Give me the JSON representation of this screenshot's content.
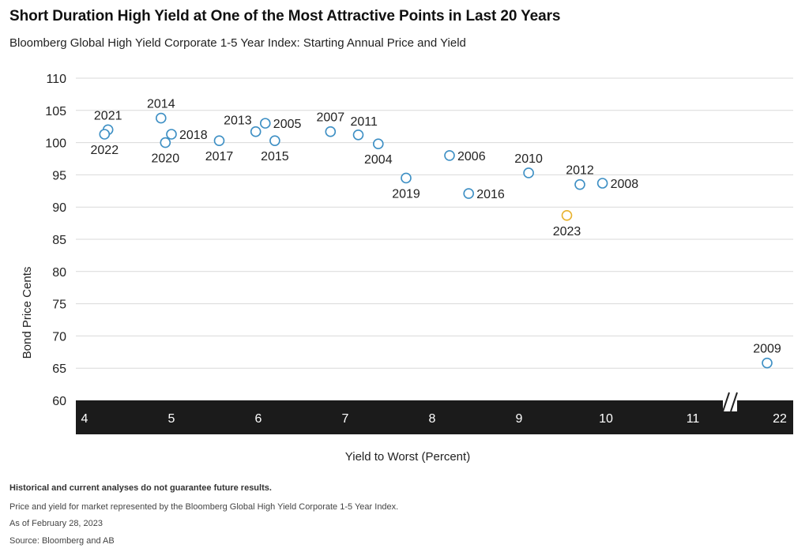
{
  "header": {
    "title": "Short Duration High Yield at One of the Most Attractive Points in Last 20 Years",
    "subtitle": "Bloomberg Global High Yield Corporate 1-5 Year Index: Starting Annual Price and Yield"
  },
  "chart_data": {
    "type": "scatter",
    "xlabel": "Yield to Worst (Percent)",
    "ylabel": "Bond Price Cents",
    "ylim": [
      60,
      110
    ],
    "yticks": [
      "60",
      "65",
      "70",
      "75",
      "80",
      "85",
      "90",
      "95",
      "100",
      "105",
      "110"
    ],
    "xticks": [
      "4",
      "5",
      "6",
      "7",
      "8",
      "9",
      "10",
      "11",
      "22"
    ],
    "xlim": [
      4,
      22
    ],
    "x_axis_break": "between 11 and 22",
    "grid": "horizontal",
    "colors": {
      "default": "#3d8fc4",
      "highlight": "#e8b22e",
      "axis_band": "#1b1b1b"
    },
    "points": [
      {
        "label": "2021",
        "x": 4.27,
        "y": 102.0,
        "label_pos": "above"
      },
      {
        "label": "2022",
        "x": 4.23,
        "y": 101.3,
        "label_pos": "below"
      },
      {
        "label": "2014",
        "x": 4.88,
        "y": 103.8,
        "label_pos": "above"
      },
      {
        "label": "2018",
        "x": 5.0,
        "y": 101.3,
        "label_pos": "right"
      },
      {
        "label": "2020",
        "x": 4.93,
        "y": 100.0,
        "label_pos": "below"
      },
      {
        "label": "2017",
        "x": 5.55,
        "y": 100.3,
        "label_pos": "below"
      },
      {
        "label": "2013",
        "x": 5.97,
        "y": 101.7,
        "label_pos": "above-left"
      },
      {
        "label": "2005",
        "x": 6.08,
        "y": 103.0,
        "label_pos": "right"
      },
      {
        "label": "2015",
        "x": 6.19,
        "y": 100.3,
        "label_pos": "below"
      },
      {
        "label": "2007",
        "x": 6.83,
        "y": 101.7,
        "label_pos": "above"
      },
      {
        "label": "2011",
        "x": 7.15,
        "y": 101.2,
        "label_pos": "above-right"
      },
      {
        "label": "2004",
        "x": 7.38,
        "y": 99.8,
        "label_pos": "below"
      },
      {
        "label": "2019",
        "x": 7.7,
        "y": 94.5,
        "label_pos": "below"
      },
      {
        "label": "2006",
        "x": 8.2,
        "y": 98.0,
        "label_pos": "right"
      },
      {
        "label": "2016",
        "x": 8.42,
        "y": 92.1,
        "label_pos": "right"
      },
      {
        "label": "2010",
        "x": 9.11,
        "y": 95.3,
        "label_pos": "above"
      },
      {
        "label": "2023",
        "x": 9.55,
        "y": 88.7,
        "label_pos": "below",
        "highlight": true
      },
      {
        "label": "2012",
        "x": 9.7,
        "y": 93.5,
        "label_pos": "above"
      },
      {
        "label": "2008",
        "x": 9.96,
        "y": 93.7,
        "label_pos": "right"
      },
      {
        "label": "2009",
        "x": 21.6,
        "y": 65.8,
        "label_pos": "above"
      }
    ]
  },
  "footer": {
    "disclaimer": "Historical and current analyses do not guarantee future results.",
    "note": "Price and yield for market represented by the Bloomberg Global High Yield Corporate 1-5 Year Index.",
    "as_of": "As of February 28, 2023",
    "source": "Source: Bloomberg and AB"
  }
}
